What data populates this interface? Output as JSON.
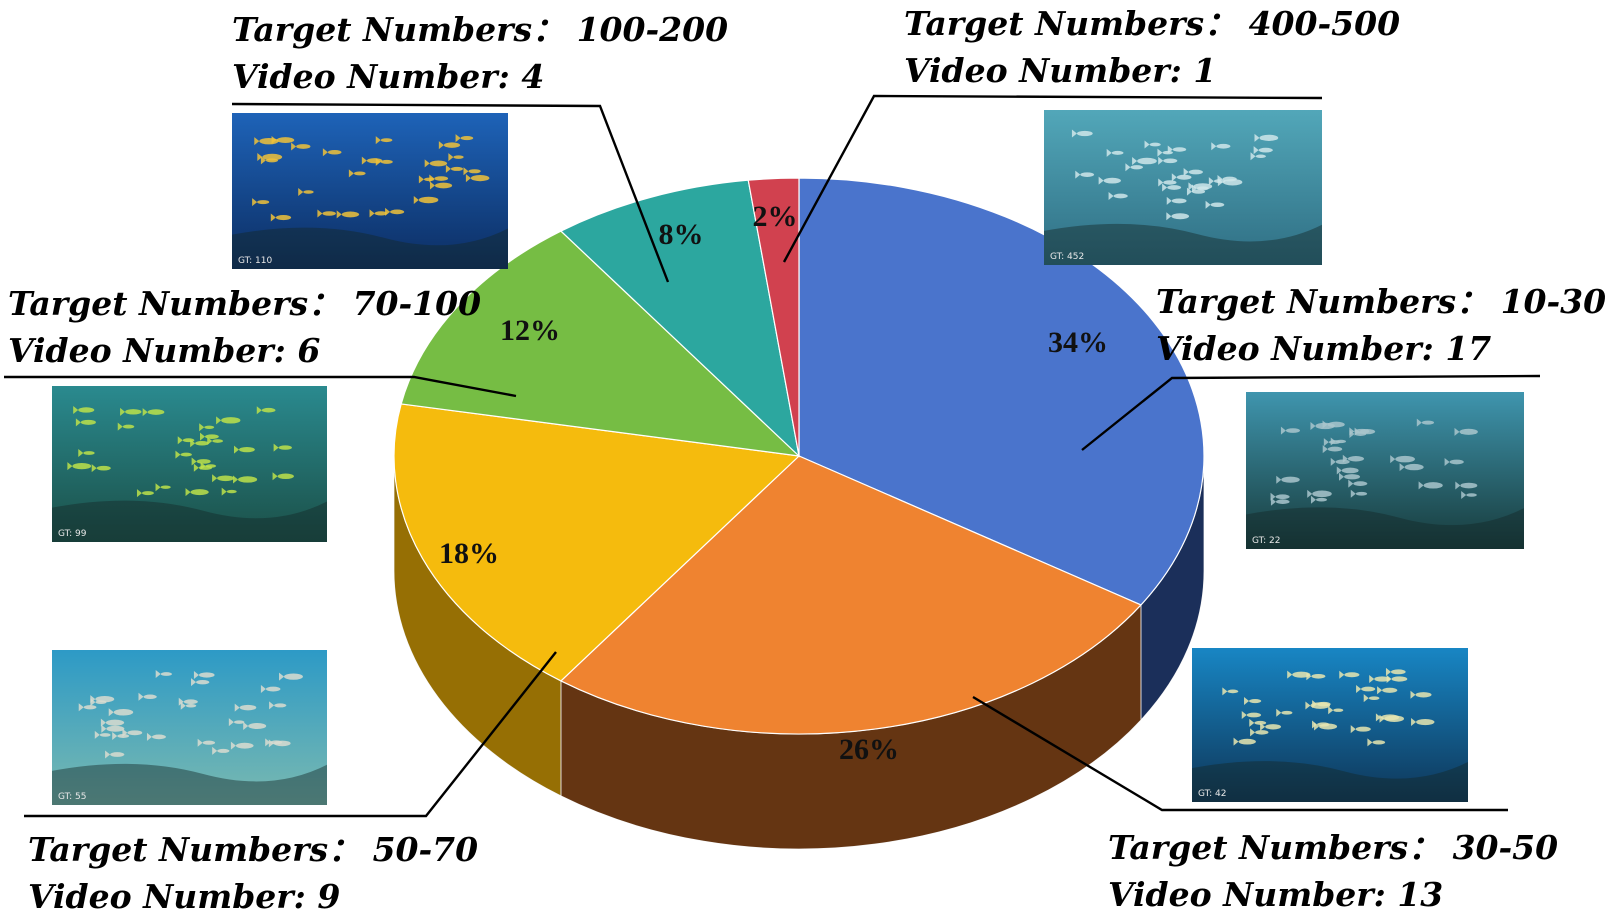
{
  "chart_data": {
    "type": "pie",
    "slices": [
      {
        "percent_label": "34%",
        "value": 34,
        "color": "#4a74cc",
        "side_color": "#1e3362",
        "target_numbers": "10-30",
        "video_number": "17",
        "thumb_gt": "GT: 22",
        "thumb_top": "#3f95ae",
        "thumb_bottom": "#173a3a",
        "fish_color": "#a9c6cc"
      },
      {
        "percent_label": "26%",
        "value": 26,
        "color": "#ef8330",
        "side_color": "#6e3a14",
        "target_numbers": "30-50",
        "video_number": "13",
        "thumb_gt": "GT: 42",
        "thumb_top": "#1886c4",
        "thumb_bottom": "#0e3557",
        "fish_color": "#e8e6b0"
      },
      {
        "percent_label": "18%",
        "value": 18,
        "color": "#f5bb0d",
        "side_color": "#a37905",
        "target_numbers": "50-70",
        "video_number": "9",
        "thumb_gt": "GT: 55",
        "thumb_top": "#2d9ac6",
        "thumb_bottom": "#7ab9b0",
        "fish_color": "#d9dcd0"
      },
      {
        "percent_label": "12%",
        "value": 12,
        "color": "#76bd44",
        "side_color": "#4a7a2a",
        "target_numbers": "70-100",
        "video_number": "6",
        "thumb_gt": "GT: 99",
        "thumb_top": "#2a8a8f",
        "thumb_bottom": "#1b4f47",
        "fish_color": "#bde24a"
      },
      {
        "percent_label": "8%",
        "value": 8,
        "color": "#2ca79f",
        "side_color": "#1a6c66",
        "target_numbers": "100-200",
        "video_number": "4",
        "thumb_gt": "GT: 110",
        "thumb_top": "#1e63b8",
        "thumb_bottom": "#0c2d62",
        "fish_color": "#f0c23a"
      },
      {
        "percent_label": "2%",
        "value": 2,
        "color": "#d1414f",
        "side_color": "#7c1f28",
        "target_numbers": "400-500",
        "video_number": "1",
        "thumb_gt": "GT: 452",
        "thumb_top": "#52a7b9",
        "thumb_bottom": "#2f6e83",
        "fish_color": "#cfe6ea"
      }
    ],
    "label_prefix_target": "Target Numbers：",
    "label_prefix_video": "Video Number:"
  }
}
